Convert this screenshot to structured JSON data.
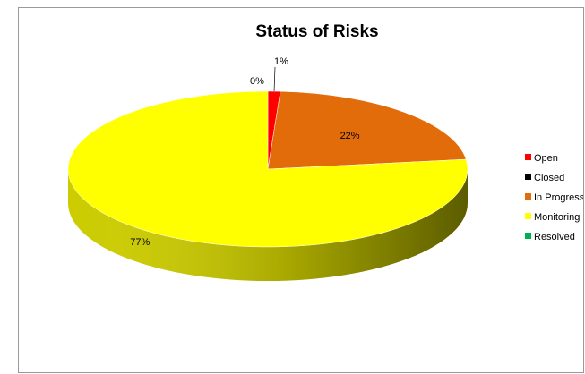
{
  "chart_data": {
    "type": "pie",
    "title": "Status of Risks",
    "categories": [
      "Open",
      "Closed",
      "In Progress",
      "Monitoring",
      "Resolved"
    ],
    "values": [
      1,
      0,
      22,
      77,
      0
    ],
    "data_labels": [
      "1%",
      "0%",
      "22%",
      "77%",
      ""
    ],
    "colors": [
      "#ff0000",
      "#000000",
      "#e36c0a",
      "#ffff00",
      "#00b050"
    ],
    "legend_position": "right",
    "style": "3d"
  }
}
